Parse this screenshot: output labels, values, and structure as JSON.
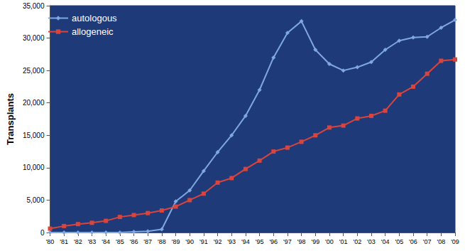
{
  "chart_data": {
    "type": "line",
    "y_label": "Transplants",
    "categories": [
      "'80",
      "'81",
      "'82",
      "'83",
      "'84",
      "'85",
      "'86",
      "'87",
      "'88",
      "'89",
      "'90",
      "'91",
      "'92",
      "'93",
      "'94",
      "'95",
      "'96",
      "'97",
      "'98",
      "'99",
      "'00",
      "'01",
      "'02",
      "'03",
      "'04",
      "'05",
      "'06",
      "'07",
      "'08",
      "'09"
    ],
    "series": [
      {
        "name": "autologous",
        "color": "#7FA7E3",
        "marker": "diamond",
        "line_style": "solid",
        "values": [
          0,
          0,
          0,
          0,
          0,
          0,
          100,
          200,
          500,
          4800,
          6500,
          9500,
          12400,
          15000,
          18000,
          22000,
          27000,
          30800,
          32600,
          28200,
          26000,
          25000,
          25500,
          26300,
          28200,
          29600,
          30100,
          30200,
          31600,
          32800
        ]
      },
      {
        "name": "allogeneic",
        "color": "#D9443C",
        "marker": "square",
        "line_style": "solid",
        "values": [
          600,
          1000,
          1300,
          1500,
          1800,
          2400,
          2700,
          3000,
          3400,
          4000,
          5000,
          6000,
          7700,
          8400,
          9800,
          11100,
          12500,
          13100,
          14000,
          15000,
          16200,
          16500,
          17600,
          18000,
          18800,
          21300,
          22500,
          24500,
          26500,
          26700
        ]
      }
    ],
    "ylim": [
      0,
      35000
    ],
    "yticks": [
      0,
      {
        "value": 5000,
        "label": "5,000"
      },
      {
        "value": 10000,
        "label": "10,000"
      },
      {
        "value": 15000,
        "label": "15,000"
      },
      {
        "value": 20000,
        "label": "20,000"
      },
      {
        "value": 25000,
        "label": "25,000"
      },
      {
        "value": 30000,
        "label": "30,000"
      },
      {
        "value": 35000,
        "label": "35,000"
      }
    ],
    "grid": false,
    "legend": "upper left"
  }
}
